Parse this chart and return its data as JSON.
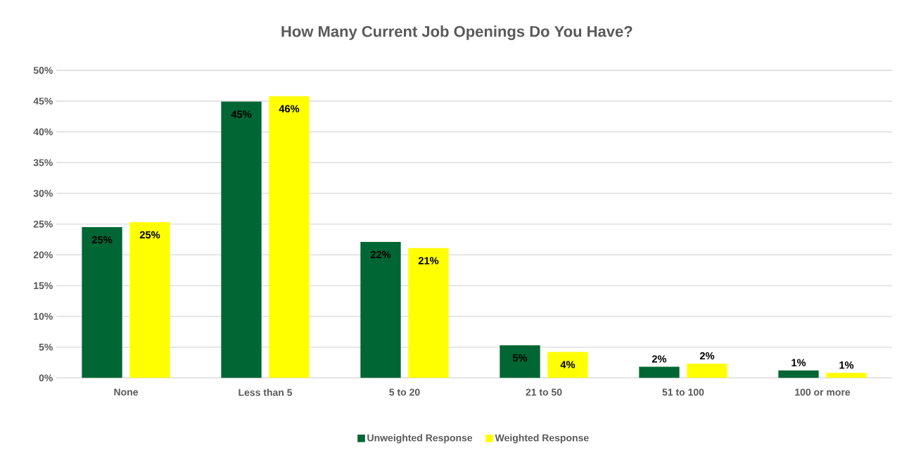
{
  "chart_data": {
    "type": "bar",
    "title": "How Many Current Job Openings Do You Have?",
    "categories": [
      "None",
      "Less than 5",
      "5 to 20",
      "21 to 50",
      "51 to 100",
      "100 or more"
    ],
    "series": [
      {
        "name": "Unweighted Response",
        "color": "#006633",
        "values": [
          24.5,
          44.9,
          22.1,
          5.3,
          1.8,
          1.2
        ],
        "value_labels": [
          "25%",
          "45%",
          "22%",
          "5%",
          "2%",
          "1%"
        ]
      },
      {
        "name": "Weighted Response",
        "color": "#ffff00",
        "values": [
          25.3,
          45.8,
          21.1,
          4.2,
          2.3,
          0.8
        ],
        "value_labels": [
          "25%",
          "46%",
          "21%",
          "4%",
          "2%",
          "1%"
        ]
      }
    ],
    "ylim": [
      0,
      50
    ],
    "yticks": [
      {
        "value": 0,
        "label": "0%"
      },
      {
        "value": 5,
        "label": "5%"
      },
      {
        "value": 10,
        "label": "10%"
      },
      {
        "value": 15,
        "label": "15%"
      },
      {
        "value": 20,
        "label": "20%"
      },
      {
        "value": 25,
        "label": "25%"
      },
      {
        "value": 30,
        "label": "30%"
      },
      {
        "value": 35,
        "label": "35%"
      },
      {
        "value": 40,
        "label": "40%"
      },
      {
        "value": 45,
        "label": "45%"
      },
      {
        "value": 50,
        "label": "50%"
      }
    ],
    "grid": "y",
    "legend": "bottom"
  }
}
